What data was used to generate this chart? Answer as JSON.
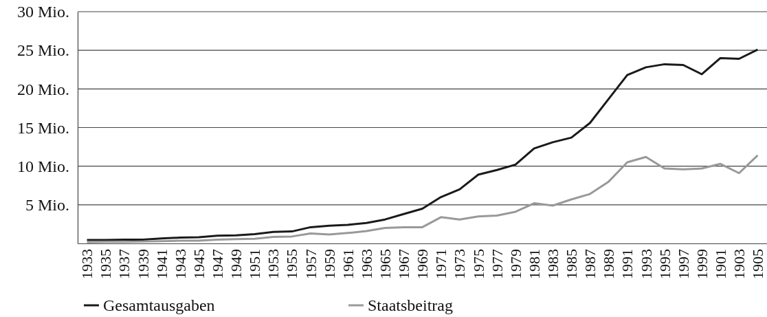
{
  "chart_data": {
    "type": "line",
    "categories": [
      "1933",
      "1935",
      "1937",
      "1939",
      "1941",
      "1943",
      "1945",
      "1947",
      "1949",
      "1951",
      "1953",
      "1955",
      "1957",
      "1959",
      "1961",
      "1963",
      "1965",
      "1967",
      "1969",
      "1971",
      "1973",
      "1975",
      "1977",
      "1979",
      "1981",
      "1983",
      "1985",
      "1987",
      "1989",
      "1991",
      "1993",
      "1995",
      "1997",
      "1999",
      "1901",
      "1903",
      "1905"
    ],
    "series": [
      {
        "name": "Gesamtausgaben",
        "color": "#1a1a1a",
        "values": [
          0.45,
          0.45,
          0.5,
          0.5,
          0.65,
          0.75,
          0.8,
          1.0,
          1.05,
          1.2,
          1.5,
          1.55,
          2.1,
          2.3,
          2.4,
          2.65,
          3.1,
          3.8,
          4.5,
          6.0,
          7.0,
          8.9,
          9.5,
          10.2,
          12.3,
          13.1,
          13.7,
          15.6,
          18.7,
          21.8,
          22.8,
          23.2,
          23.1,
          21.9,
          24.0,
          23.9,
          25.1
        ]
      },
      {
        "name": "Staatsbeitrag",
        "color": "#999999",
        "values": [
          0.15,
          0.2,
          0.2,
          0.25,
          0.3,
          0.35,
          0.35,
          0.5,
          0.55,
          0.6,
          0.85,
          0.9,
          1.3,
          1.15,
          1.35,
          1.6,
          2.0,
          2.1,
          2.1,
          3.4,
          3.1,
          3.5,
          3.6,
          4.1,
          5.2,
          4.9,
          5.7,
          6.4,
          8.0,
          10.5,
          11.2,
          9.7,
          9.6,
          9.7,
          10.3,
          9.1,
          11.4
        ]
      }
    ],
    "ylim": [
      0,
      30
    ],
    "yticks": [
      {
        "value": 5,
        "label": "5 Mio."
      },
      {
        "value": 10,
        "label": "10 Mio."
      },
      {
        "value": 15,
        "label": "15 Mio."
      },
      {
        "value": 20,
        "label": "20 Mio."
      },
      {
        "value": 25,
        "label": "25 Mio."
      },
      {
        "value": 30,
        "label": "30 Mio."
      }
    ],
    "grid": "y",
    "legend": "bottom",
    "line_style": "solid",
    "marker": "none"
  }
}
